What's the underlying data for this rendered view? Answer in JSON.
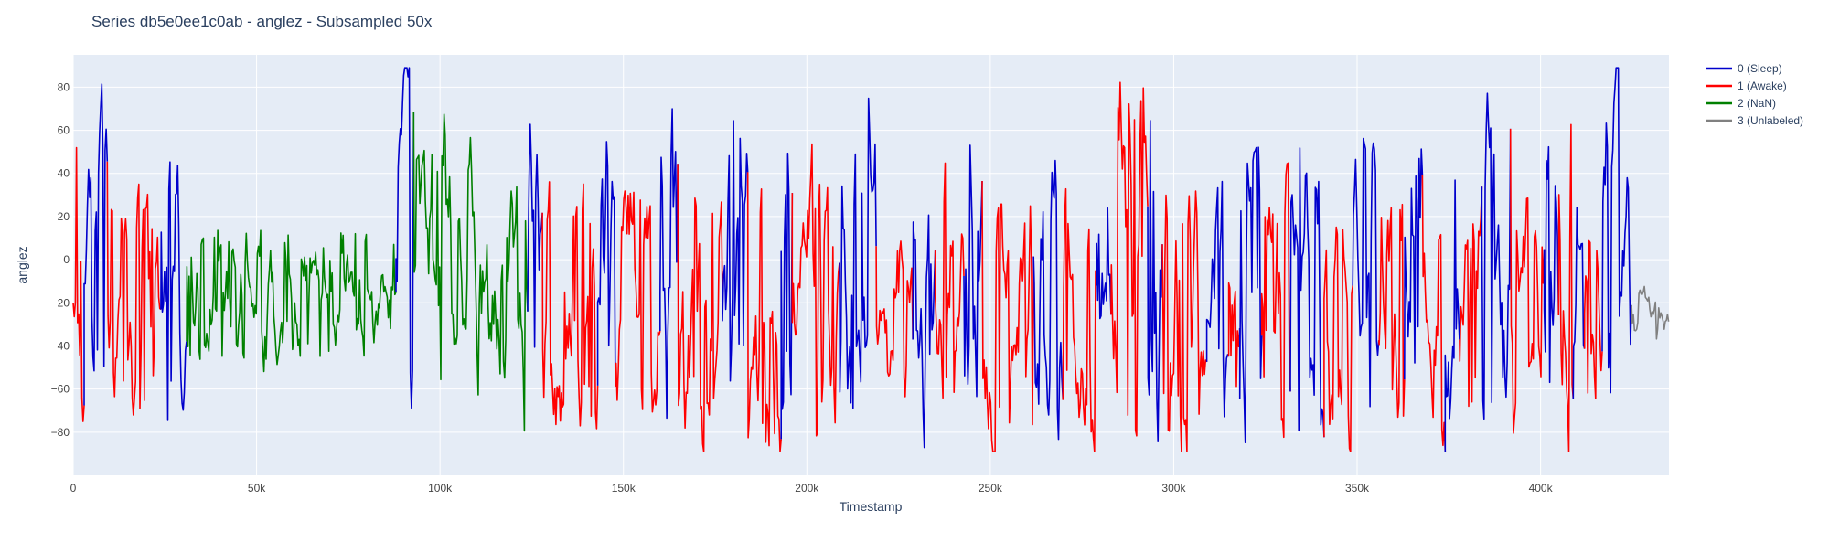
{
  "chart_data": {
    "type": "line",
    "title": "Series db5e0ee1c0ab - anglez - Subsampled 50x",
    "xlabel": "Timestamp",
    "ylabel": "anglez",
    "xlim": [
      0,
      435000
    ],
    "ylim": [
      -100,
      95
    ],
    "x_ticks": [
      {
        "value": 0,
        "label": "0"
      },
      {
        "value": 50000,
        "label": "50k"
      },
      {
        "value": 100000,
        "label": "100k"
      },
      {
        "value": 150000,
        "label": "150k"
      },
      {
        "value": 200000,
        "label": "200k"
      },
      {
        "value": 250000,
        "label": "250k"
      },
      {
        "value": 300000,
        "label": "300k"
      },
      {
        "value": 350000,
        "label": "350k"
      },
      {
        "value": 400000,
        "label": "400k"
      }
    ],
    "y_ticks": [
      {
        "value": 80,
        "label": "80"
      },
      {
        "value": 60,
        "label": "60"
      },
      {
        "value": 40,
        "label": "40"
      },
      {
        "value": 20,
        "label": "20"
      },
      {
        "value": 0,
        "label": "0"
      },
      {
        "value": -20,
        "label": "−20"
      },
      {
        "value": -40,
        "label": "−40"
      },
      {
        "value": -60,
        "label": "−60"
      },
      {
        "value": -80,
        "label": "−80"
      }
    ],
    "grid": true,
    "legend_position": "top-right",
    "plot_background": "#e5ecf6",
    "series": [
      {
        "name": "0 (Sleep)",
        "color": "#0000cc"
      },
      {
        "name": "1 (Awake)",
        "color": "#ff0000"
      },
      {
        "name": "2 (NaN)",
        "color": "#008000"
      },
      {
        "name": "3 (Unlabeled)",
        "color": "#808080"
      }
    ],
    "segments": [
      {
        "series": 1,
        "x_start": 0,
        "x_end": 3000,
        "center": -20,
        "amp": 75
      },
      {
        "series": 0,
        "x_start": 3000,
        "x_end": 9500,
        "center": 5,
        "amp": 65
      },
      {
        "series": 1,
        "x_start": 9500,
        "x_end": 24000,
        "center": -30,
        "amp": 55
      },
      {
        "series": 0,
        "x_start": 24000,
        "x_end": 31000,
        "center": -15,
        "amp": 60
      },
      {
        "series": 2,
        "x_start": 31000,
        "x_end": 88000,
        "center": -15,
        "amp": 30
      },
      {
        "series": 0,
        "x_start": 88000,
        "x_end": 93000,
        "center": 0,
        "amp": 70
      },
      {
        "series": 2,
        "x_start": 93000,
        "x_end": 124000,
        "center": -10,
        "amp": 70
      },
      {
        "series": 0,
        "x_start": 124000,
        "x_end": 128000,
        "center": 0,
        "amp": 65
      },
      {
        "series": 1,
        "x_start": 128000,
        "x_end": 143000,
        "center": -25,
        "amp": 50
      },
      {
        "series": 0,
        "x_start": 143000,
        "x_end": 148000,
        "center": 0,
        "amp": 70
      },
      {
        "series": 1,
        "x_start": 148000,
        "x_end": 160000,
        "center": -20,
        "amp": 55
      },
      {
        "series": 0,
        "x_start": 160000,
        "x_end": 165000,
        "center": -5,
        "amp": 70
      },
      {
        "series": 1,
        "x_start": 165000,
        "x_end": 177000,
        "center": -25,
        "amp": 55
      },
      {
        "series": 0,
        "x_start": 177000,
        "x_end": 184000,
        "center": -5,
        "amp": 70
      },
      {
        "series": 1,
        "x_start": 184000,
        "x_end": 193000,
        "center": -30,
        "amp": 55
      },
      {
        "series": 0,
        "x_start": 193000,
        "x_end": 196000,
        "center": -10,
        "amp": 65
      },
      {
        "series": 1,
        "x_start": 196000,
        "x_end": 209000,
        "center": -25,
        "amp": 60
      },
      {
        "series": 0,
        "x_start": 209000,
        "x_end": 219000,
        "center": 0,
        "amp": 75
      },
      {
        "series": 1,
        "x_start": 219000,
        "x_end": 229000,
        "center": -25,
        "amp": 30
      },
      {
        "series": 0,
        "x_start": 229000,
        "x_end": 235000,
        "center": -5,
        "amp": 75
      },
      {
        "series": 1,
        "x_start": 235000,
        "x_end": 243000,
        "center": -25,
        "amp": 55
      },
      {
        "series": 0,
        "x_start": 243000,
        "x_end": 248000,
        "center": -5,
        "amp": 65
      },
      {
        "series": 1,
        "x_start": 248000,
        "x_end": 262000,
        "center": -25,
        "amp": 60
      },
      {
        "series": 0,
        "x_start": 262000,
        "x_end": 270000,
        "center": -5,
        "amp": 65
      },
      {
        "series": 1,
        "x_start": 270000,
        "x_end": 279000,
        "center": -30,
        "amp": 50
      },
      {
        "series": 0,
        "x_start": 279000,
        "x_end": 283000,
        "center": -5,
        "amp": 70
      },
      {
        "series": 1,
        "x_start": 283000,
        "x_end": 293000,
        "center": 0,
        "amp": 80
      },
      {
        "series": 0,
        "x_start": 293000,
        "x_end": 297000,
        "center": -5,
        "amp": 75
      },
      {
        "series": 1,
        "x_start": 297000,
        "x_end": 309000,
        "center": -25,
        "amp": 60
      },
      {
        "series": 0,
        "x_start": 309000,
        "x_end": 315000,
        "center": -10,
        "amp": 65
      },
      {
        "series": 1,
        "x_start": 315000,
        "x_end": 318000,
        "center": -25,
        "amp": 55
      },
      {
        "series": 0,
        "x_start": 318000,
        "x_end": 324000,
        "center": -10,
        "amp": 65
      },
      {
        "series": 1,
        "x_start": 324000,
        "x_end": 332000,
        "center": -30,
        "amp": 55
      },
      {
        "series": 0,
        "x_start": 332000,
        "x_end": 341000,
        "center": -5,
        "amp": 75
      },
      {
        "series": 1,
        "x_start": 341000,
        "x_end": 349000,
        "center": -35,
        "amp": 50
      },
      {
        "series": 0,
        "x_start": 349000,
        "x_end": 356000,
        "center": 0,
        "amp": 70
      },
      {
        "series": 1,
        "x_start": 356000,
        "x_end": 363000,
        "center": -25,
        "amp": 55
      },
      {
        "series": 0,
        "x_start": 363000,
        "x_end": 368000,
        "center": -10,
        "amp": 65
      },
      {
        "series": 1,
        "x_start": 368000,
        "x_end": 374000,
        "center": -25,
        "amp": 55
      },
      {
        "series": 0,
        "x_start": 374000,
        "x_end": 378000,
        "center": -15,
        "amp": 60
      },
      {
        "series": 1,
        "x_start": 378000,
        "x_end": 384000,
        "center": -30,
        "amp": 50
      },
      {
        "series": 0,
        "x_start": 384000,
        "x_end": 392000,
        "center": -5,
        "amp": 70
      },
      {
        "series": 1,
        "x_start": 392000,
        "x_end": 401000,
        "center": -35,
        "amp": 50
      },
      {
        "series": 0,
        "x_start": 401000,
        "x_end": 405000,
        "center": -10,
        "amp": 65
      },
      {
        "series": 1,
        "x_start": 405000,
        "x_end": 409000,
        "center": 0,
        "amp": 70
      },
      {
        "series": 0,
        "x_start": 409000,
        "x_end": 412000,
        "center": -10,
        "amp": 60
      },
      {
        "series": 1,
        "x_start": 412000,
        "x_end": 417000,
        "center": -35,
        "amp": 50
      },
      {
        "series": 0,
        "x_start": 417000,
        "x_end": 425000,
        "center": 0,
        "amp": 70
      },
      {
        "series": 3,
        "x_start": 425000,
        "x_end": 435000,
        "center": -25,
        "amp": 15
      }
    ]
  }
}
